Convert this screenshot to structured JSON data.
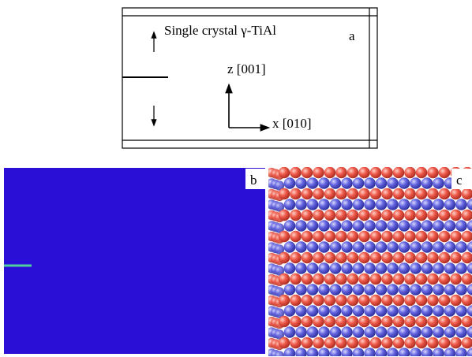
{
  "panel_a": {
    "label": "a",
    "title": "Single crystal γ-TiAl",
    "z_axis": "z [001]",
    "x_axis": "x [010]"
  },
  "panel_b": {
    "label": "b"
  },
  "panel_c": {
    "label": "c"
  }
}
